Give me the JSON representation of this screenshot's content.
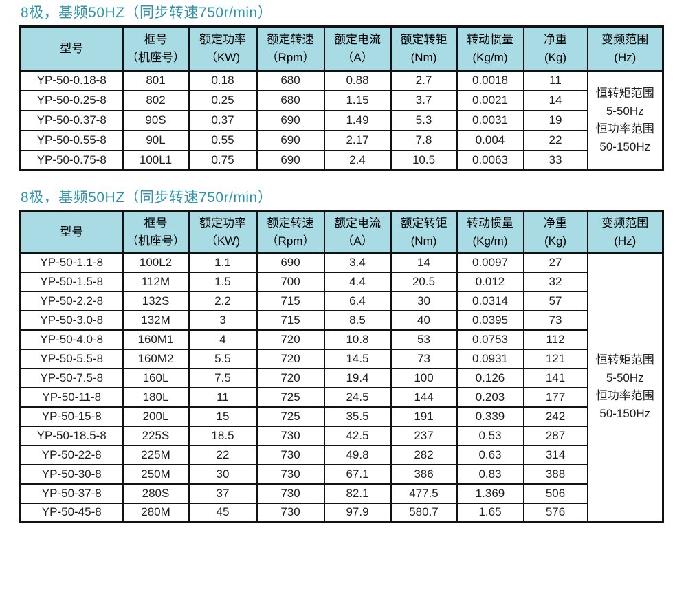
{
  "colors": {
    "title_text": "#3093ab",
    "header_bg": "#a9dbe5",
    "border": "#121212",
    "body_text": "#1d1d1d"
  },
  "tables": [
    {
      "title": "8极，基频50HZ（同步转速750r/min）",
      "columns": [
        {
          "title": "型号",
          "unit": ""
        },
        {
          "title": "框号",
          "unit": "（机座号）"
        },
        {
          "title": "额定功率",
          "unit": "（KW)"
        },
        {
          "title": "额定转速",
          "unit": "（Rpm）"
        },
        {
          "title": "额定电流",
          "unit": "（A）"
        },
        {
          "title": "额定转钜",
          "unit": "(Nm)"
        },
        {
          "title": "转动惯量",
          "unit": "(Kg/m)"
        },
        {
          "title": "净重",
          "unit": "(Kg)"
        },
        {
          "title": "变频范围",
          "unit": "(Hz)"
        }
      ],
      "rows": [
        [
          "YP-50-0.18-8",
          "801",
          "0.18",
          "680",
          "0.88",
          "2.7",
          "0.0018",
          "11"
        ],
        [
          "YP-50-0.25-8",
          "802",
          "0.25",
          "680",
          "1.15",
          "3.7",
          "0.0021",
          "14"
        ],
        [
          "YP-50-0.37-8",
          "90S",
          "0.37",
          "690",
          "1.49",
          "5.3",
          "0.0031",
          "19"
        ],
        [
          "YP-50-0.55-8",
          "90L",
          "0.55",
          "690",
          "2.17",
          "7.8",
          "0.004",
          "22"
        ],
        [
          "YP-50-0.75-8",
          "100L1",
          "0.75",
          "690",
          "2.4",
          "10.5",
          "0.0063",
          "33"
        ]
      ],
      "range_note": [
        "恒转矩范围",
        "5-50Hz",
        "恒功率范围",
        "50-150Hz"
      ]
    },
    {
      "title": "8极，基频50HZ（同步转速750r/min）",
      "columns": [
        {
          "title": "型号",
          "unit": ""
        },
        {
          "title": "框号",
          "unit": "（机座号）"
        },
        {
          "title": "额定功率",
          "unit": "（KW)"
        },
        {
          "title": "额定转速",
          "unit": "（Rpm）"
        },
        {
          "title": "额定电流",
          "unit": "（A）"
        },
        {
          "title": "额定转钜",
          "unit": "(Nm)"
        },
        {
          "title": "转动惯量",
          "unit": "(Kg/m)"
        },
        {
          "title": "净重",
          "unit": "(Kg)"
        },
        {
          "title": "变频范围",
          "unit": "(Hz)"
        }
      ],
      "rows": [
        [
          "YP-50-1.1-8",
          "100L2",
          "1.1",
          "690",
          "3.4",
          "14",
          "0.0097",
          "27"
        ],
        [
          "YP-50-1.5-8",
          "112M",
          "1.5",
          "700",
          "4.4",
          "20.5",
          "0.012",
          "32"
        ],
        [
          "YP-50-2.2-8",
          "132S",
          "2.2",
          "715",
          "6.4",
          "30",
          "0.0314",
          "57"
        ],
        [
          "YP-50-3.0-8",
          "132M",
          "3",
          "715",
          "8.5",
          "40",
          "0.0395",
          "73"
        ],
        [
          "YP-50-4.0-8",
          "160M1",
          "4",
          "720",
          "10.8",
          "53",
          "0.0753",
          "112"
        ],
        [
          "YP-50-5.5-8",
          "160M2",
          "5.5",
          "720",
          "14.5",
          "73",
          "0.0931",
          "121"
        ],
        [
          "YP-50-7.5-8",
          "160L",
          "7.5",
          "720",
          "19.4",
          "100",
          "0.126",
          "141"
        ],
        [
          "YP-50-11-8",
          "180L",
          "11",
          "725",
          "24.5",
          "144",
          "0.203",
          "177"
        ],
        [
          "YP-50-15-8",
          "200L",
          "15",
          "725",
          "35.5",
          "191",
          "0.339",
          "242"
        ],
        [
          "YP-50-18.5-8",
          "225S",
          "18.5",
          "730",
          "42.5",
          "237",
          "0.53",
          "287"
        ],
        [
          "YP-50-22-8",
          "225M",
          "22",
          "730",
          "49.8",
          "282",
          "0.63",
          "314"
        ],
        [
          "YP-50-30-8",
          "250M",
          "30",
          "730",
          "67.1",
          "386",
          "0.83",
          "388"
        ],
        [
          "YP-50-37-8",
          "280S",
          "37",
          "730",
          "82.1",
          "477.5",
          "1.369",
          "506"
        ],
        [
          "YP-50-45-8",
          "280M",
          "45",
          "730",
          "97.9",
          "580.7",
          "1.65",
          "576"
        ]
      ],
      "range_note": [
        "恒转矩范围",
        "5-50Hz",
        "恒功率范围",
        "50-150Hz"
      ]
    }
  ]
}
